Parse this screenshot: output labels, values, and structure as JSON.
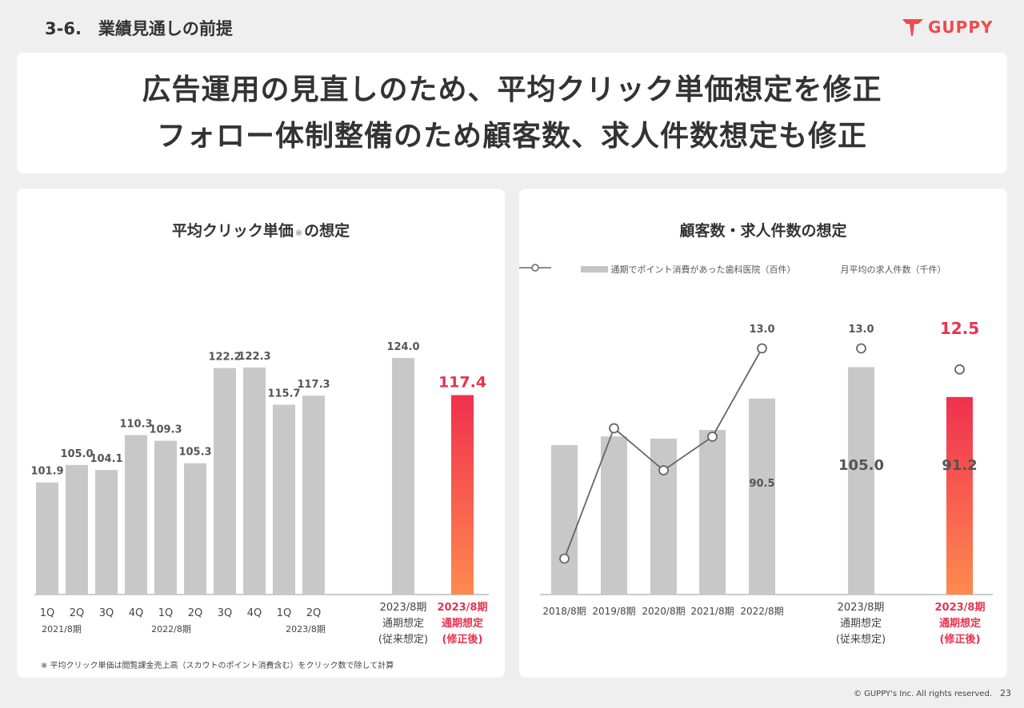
{
  "header": {
    "section_title": "3-6.　業績見通しの前提",
    "logo_text": "GUPPY"
  },
  "headline": {
    "line1": "広告運用の見直しのため、平均クリック単価想定を修正",
    "line2": "フォロー体制整備のため顧客数、求人件数想定も修正"
  },
  "footer": {
    "copyright": "© GUPPY's Inc. All rights reserved.",
    "page_number": "23"
  },
  "colors": {
    "bar_gray": "#c8c8c8",
    "accent_red": "#e8334f",
    "gradient_top": "#f0304f",
    "gradient_bottom": "#ff8a4f",
    "line_gray": "#666666"
  },
  "chart_data": [
    {
      "type": "bar",
      "title": "平均クリック単価",
      "title_note_mark": "※",
      "title_suffix": "の想定",
      "categories": [
        "1Q",
        "2Q",
        "3Q",
        "4Q",
        "1Q",
        "2Q",
        "3Q",
        "4Q",
        "1Q",
        "2Q",
        "2023/8期 通期想定 (従来想定)",
        "2023/8期 通期想定 (修正後)"
      ],
      "values": [
        101.9,
        105.0,
        104.1,
        110.3,
        109.3,
        105.3,
        122.2,
        122.3,
        115.7,
        117.3,
        124.0,
        117.4
      ],
      "value_labels": [
        "101.9",
        "105.0",
        "104.1",
        "110.3",
        "109.3",
        "105.3",
        "122.2",
        "122.3",
        "115.7",
        "117.3",
        "124.0",
        "117.4"
      ],
      "period_labels": [
        "2021/8期",
        "2022/8期",
        "2023/8期"
      ],
      "forecast_labels": {
        "old": [
          "2023/8期",
          "通期想定",
          "(従来想定)"
        ],
        "new": [
          "2023/8期",
          "通期想定",
          "(修正後)"
        ]
      },
      "highlight": "last",
      "footnote": "※ 平均クリック単価は閲覧課金売上高（スカウトのポイント消費含む）をクリック数で除して計算"
    },
    {
      "type": "bar+line",
      "title": "顧客数・求人件数の想定",
      "legend": {
        "bar": "通期でポイント消費があった歯科医院（百件）",
        "line": "月平均の求人件数（千件）"
      },
      "categories": [
        "2018/8期",
        "2019/8期",
        "2020/8期",
        "2021/8期",
        "2022/8期",
        "2023/8期 通期想定 (従来想定)",
        "2023/8期 通期想定 (修正後)"
      ],
      "bar_series": {
        "name": "通期でポイント消費があった歯科医院（百件）",
        "values": [
          69.0,
          73.0,
          72.0,
          76.0,
          90.5,
          105.0,
          91.2
        ],
        "labels": [
          "",
          "",
          "",
          "",
          "90.5",
          "105.0",
          "91.2"
        ]
      },
      "line_series": {
        "name": "月平均の求人件数（千件）",
        "values": [
          8.0,
          11.1,
          10.1,
          10.9,
          13.0,
          13.0,
          12.5
        ],
        "labels": [
          "",
          "",
          "",
          "",
          "13.0",
          "13.0",
          "12.5"
        ]
      },
      "forecast_labels": {
        "old": [
          "2023/8期",
          "通期想定",
          "(従来想定)"
        ],
        "new": [
          "2023/8期",
          "通期想定",
          "(修正後)"
        ]
      },
      "highlight": "last"
    }
  ]
}
